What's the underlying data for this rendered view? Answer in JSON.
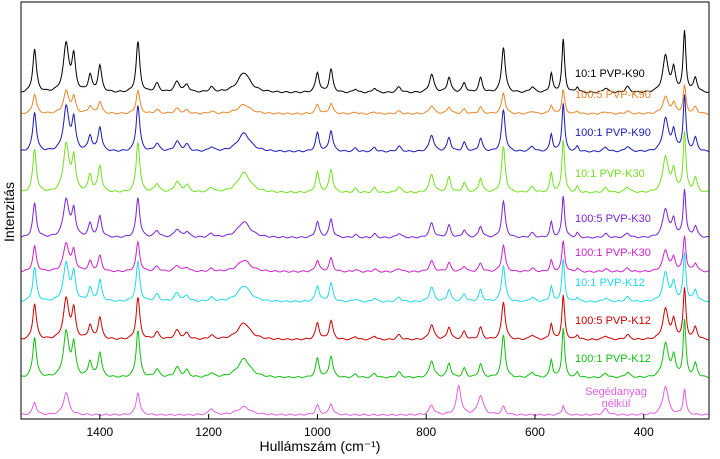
{
  "chart_data": {
    "type": "line",
    "title": "",
    "xlabel": "Hullámszám (cm⁻¹)",
    "ylabel": "Intenzitás",
    "x_reversed": true,
    "xlim": [
      1545,
      280
    ],
    "x_ticks": [
      1400,
      1200,
      1000,
      800,
      600,
      400
    ],
    "x_tick_labels": [
      "1400",
      "1200",
      "1000",
      "800",
      "600",
      "400"
    ],
    "y_ticks_shown": false,
    "grid": false,
    "legend": "inline labels at right of each trace",
    "colors": {
      "black": "#000000",
      "orange": "#e8862a",
      "blue": "#1a1ab8",
      "lime": "#72e020",
      "violet": "#7a22d8",
      "magenta": "#cc22cc",
      "cyan": "#22d8e8",
      "red": "#cc0000",
      "green": "#10c010",
      "pink": "#e060e0"
    },
    "series": [
      {
        "name": "10:1 PVP-K90",
        "color": "#000000",
        "baseline": 93,
        "text_color": "#000000"
      },
      {
        "name": "100:5 PVP-K90",
        "color": "#e8862a",
        "baseline": 114,
        "text_color": "#e8862a"
      },
      {
        "name": "100:1 PVP-K90",
        "color": "#1a1ab8",
        "baseline": 152,
        "text_color": "#1a1ab8"
      },
      {
        "name": "10:1 PVP-K30",
        "color": "#72e020",
        "baseline": 193,
        "text_color": "#72e020"
      },
      {
        "name": "100:5 PVP-K30",
        "color": "#7a22d8",
        "baseline": 238,
        "text_color": "#7a22d8"
      },
      {
        "name": "100:1 PVP-K30",
        "color": "#cc22cc",
        "baseline": 272,
        "text_color": "#cc22cc"
      },
      {
        "name": "10:1 PVP-K12",
        "color": "#22d8e8",
        "baseline": 302,
        "text_color": "#22d8e8"
      },
      {
        "name": "100:5 PVP-K12",
        "color": "#cc0000",
        "baseline": 340,
        "text_color": "#cc0000"
      },
      {
        "name": "100:1 PVP-K12",
        "color": "#10c010",
        "baseline": 378,
        "text_color": "#10c010"
      },
      {
        "name": "Segédanyag nélkül",
        "label_lines": [
          "Segédanyag",
          "nélkül"
        ],
        "color": "#e060e0",
        "baseline": 415,
        "text_color": "#e060e0"
      }
    ]
  }
}
